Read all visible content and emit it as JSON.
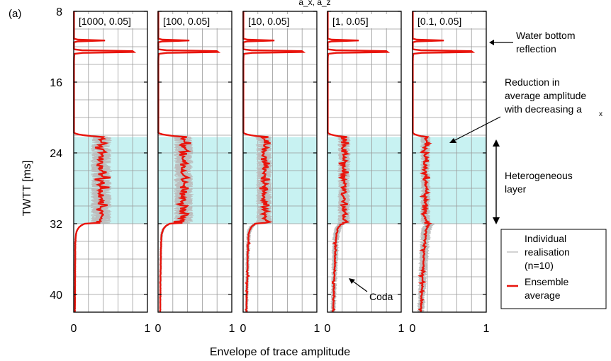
{
  "figure": {
    "panel_letter": "(a)",
    "cut_title": "a_x, a_z"
  },
  "chart_data": {
    "type": "line",
    "y_axis": {
      "label": "TWTT [ms]",
      "lim": [
        8,
        42
      ],
      "ticks": [
        8,
        16,
        24,
        32,
        40
      ],
      "inverted": true,
      "grid_step": 2
    },
    "x_axis": {
      "label": "Envelope of trace amplitude",
      "lim": [
        0,
        1
      ],
      "tick_labels": [
        "0",
        "1"
      ],
      "grid_step": 0.2
    },
    "shaded_layer": {
      "from": 22.2,
      "to": 32.0,
      "color": "#c8f2f2"
    },
    "panels": [
      {
        "label": "[1000, 0.05]",
        "layer_mean": 0.37,
        "coda": 0.02
      },
      {
        "label": "[100, 0.05]",
        "layer_mean": 0.34,
        "coda": 0.04
      },
      {
        "label": "[10, 0.05]",
        "layer_mean": 0.28,
        "coda": 0.07
      },
      {
        "label": "[1, 0.05]",
        "layer_mean": 0.22,
        "coda": 0.12
      },
      {
        "label": "[0.1, 0.05]",
        "layer_mean": 0.17,
        "coda": 0.18
      }
    ],
    "series": [
      {
        "name": "Individual realisation (n=10)",
        "color": "#bdbdbd"
      },
      {
        "name": "Ensemble average",
        "color": "#e8140c"
      }
    ],
    "annotations": {
      "water_bottom": [
        "Water bottom",
        "reflection"
      ],
      "reduction": [
        "Reduction in",
        "average amplitude",
        "with decreasing a"
      ],
      "reduction_sub": "x",
      "heterogeneous": [
        "Heterogeneous",
        "layer"
      ],
      "coda": "Coda"
    },
    "legend": {
      "placement": "bottom-right",
      "individual": [
        "Individual",
        "realisation",
        "(n=10)"
      ],
      "average": [
        "Ensemble",
        "average"
      ]
    }
  }
}
